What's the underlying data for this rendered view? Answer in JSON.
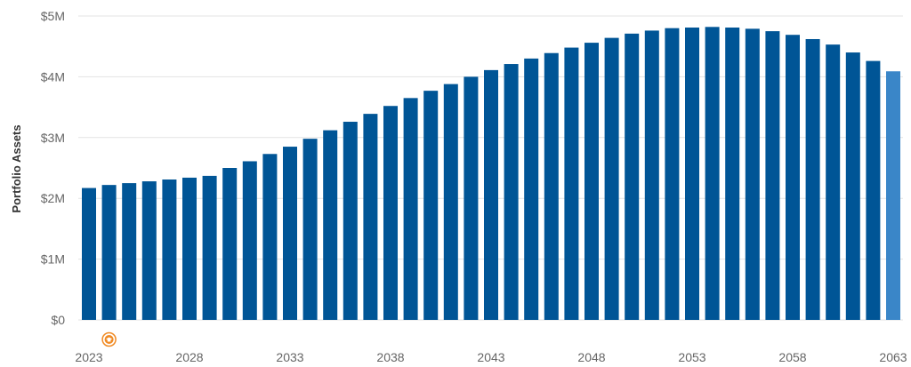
{
  "chart_data": {
    "type": "bar",
    "title": "",
    "xlabel": "",
    "ylabel": "Portfolio Assets",
    "ylim": [
      0,
      5000000
    ],
    "y_ticks": [
      {
        "value": 0,
        "label": "$0"
      },
      {
        "value": 1000000,
        "label": "$1M"
      },
      {
        "value": 2000000,
        "label": "$2M"
      },
      {
        "value": 3000000,
        "label": "$3M"
      },
      {
        "value": 4000000,
        "label": "$4M"
      },
      {
        "value": 5000000,
        "label": "$5M"
      }
    ],
    "x_tick_labels": [
      "2023",
      "2028",
      "2033",
      "2038",
      "2043",
      "2048",
      "2053",
      "2058",
      "2063"
    ],
    "grid": "horizontal",
    "categories": [
      2023,
      2024,
      2025,
      2026,
      2027,
      2028,
      2029,
      2030,
      2031,
      2032,
      2033,
      2034,
      2035,
      2036,
      2037,
      2038,
      2039,
      2040,
      2041,
      2042,
      2043,
      2044,
      2045,
      2046,
      2047,
      2048,
      2049,
      2050,
      2051,
      2052,
      2053,
      2054,
      2055,
      2056,
      2057,
      2058,
      2059,
      2060,
      2061,
      2062,
      2063
    ],
    "values": [
      2170000,
      2220000,
      2250000,
      2280000,
      2310000,
      2340000,
      2370000,
      2500000,
      2610000,
      2730000,
      2850000,
      2980000,
      3120000,
      3260000,
      3390000,
      3520000,
      3650000,
      3770000,
      3880000,
      4000000,
      4110000,
      4210000,
      4300000,
      4390000,
      4480000,
      4560000,
      4640000,
      4710000,
      4760000,
      4800000,
      4810000,
      4820000,
      4810000,
      4790000,
      4750000,
      4690000,
      4620000,
      4530000,
      4400000,
      4260000,
      4090000
    ],
    "colors": {
      "bar": "#005596",
      "highlight_bar": "#3a86c8",
      "grid": "#e3e3e3",
      "marker": "#f08a24"
    },
    "highlight_index": 40,
    "marker": {
      "category": 2024,
      "icon": "graduation-cap-icon"
    }
  }
}
